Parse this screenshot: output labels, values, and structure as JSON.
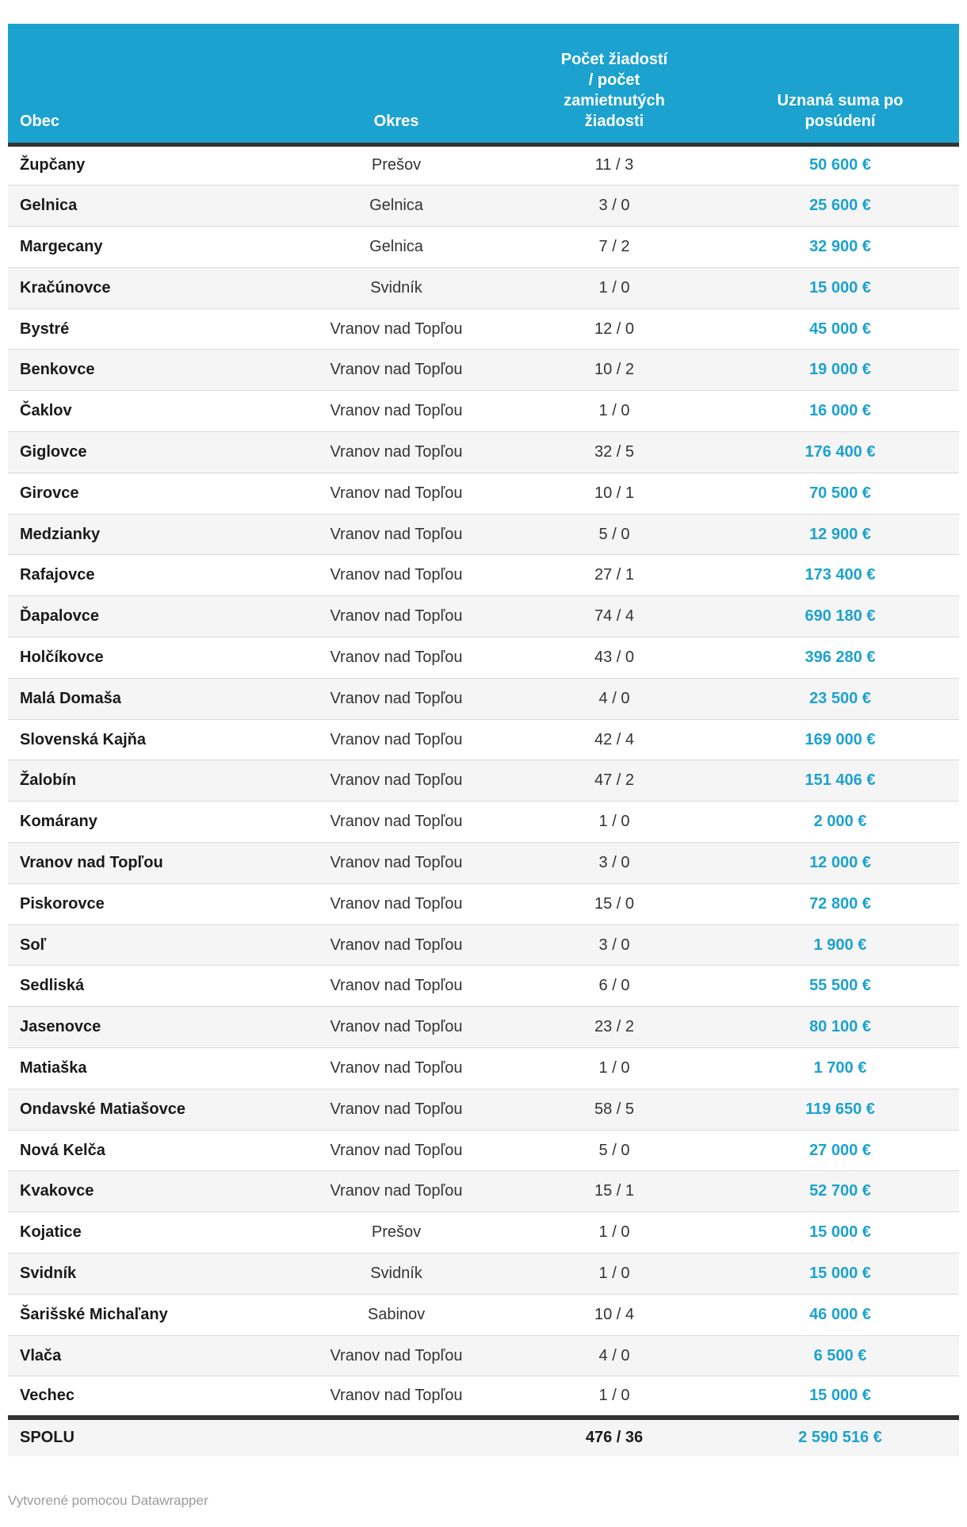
{
  "chart_data": {
    "type": "table",
    "columns": [
      {
        "key": "obec",
        "label": "Obec",
        "align": "left"
      },
      {
        "key": "okres",
        "label": "Okres",
        "align": "center"
      },
      {
        "key": "pocet",
        "label": "Počet žiadostí\n/ počet\nzamietnutých\nžiadosti",
        "align": "center"
      },
      {
        "key": "suma",
        "label": "Uznaná suma po\nposúdení",
        "align": "center"
      }
    ],
    "rows": [
      {
        "obec": "Župčany",
        "okres": "Prešov",
        "pocet": "11 / 3",
        "suma": "50 600 €"
      },
      {
        "obec": "Gelnica",
        "okres": "Gelnica",
        "pocet": "3 / 0",
        "suma": "25 600 €"
      },
      {
        "obec": "Margecany",
        "okres": "Gelnica",
        "pocet": "7 / 2",
        "suma": "32 900 €"
      },
      {
        "obec": "Kračúnovce",
        "okres": "Svidník",
        "pocet": "1 / 0",
        "suma": "15 000 €"
      },
      {
        "obec": "Bystré",
        "okres": "Vranov nad Topľou",
        "pocet": "12 / 0",
        "suma": "45 000 €"
      },
      {
        "obec": "Benkovce",
        "okres": "Vranov nad Topľou",
        "pocet": "10 / 2",
        "suma": "19 000 €"
      },
      {
        "obec": "Čaklov",
        "okres": "Vranov nad Topľou",
        "pocet": "1 / 0",
        "suma": "16 000 €"
      },
      {
        "obec": "Giglovce",
        "okres": "Vranov nad Topľou",
        "pocet": "32 / 5",
        "suma": "176 400 €"
      },
      {
        "obec": "Girovce",
        "okres": "Vranov nad Topľou",
        "pocet": "10 / 1",
        "suma": "70 500 €"
      },
      {
        "obec": "Medzianky",
        "okres": "Vranov nad Topľou",
        "pocet": "5 / 0",
        "suma": "12 900 €"
      },
      {
        "obec": "Rafajovce",
        "okres": "Vranov nad Topľou",
        "pocet": "27 / 1",
        "suma": "173 400 €"
      },
      {
        "obec": "Ďapalovce",
        "okres": "Vranov nad Topľou",
        "pocet": "74 / 4",
        "suma": "690 180 €"
      },
      {
        "obec": "Holčíkovce",
        "okres": "Vranov nad Topľou",
        "pocet": "43 / 0",
        "suma": "396 280 €"
      },
      {
        "obec": "Malá Domaša",
        "okres": "Vranov nad Topľou",
        "pocet": "4 / 0",
        "suma": "23 500 €"
      },
      {
        "obec": "Slovenská Kajňa",
        "okres": "Vranov nad Topľou",
        "pocet": "42 / 4",
        "suma": "169 000 €"
      },
      {
        "obec": "Žalobín",
        "okres": "Vranov nad Topľou",
        "pocet": "47 / 2",
        "suma": "151 406 €"
      },
      {
        "obec": "Komárany",
        "okres": "Vranov nad Topľou",
        "pocet": "1 / 0",
        "suma": "2 000 €"
      },
      {
        "obec": "Vranov nad Topľou",
        "okres": "Vranov nad Topľou",
        "pocet": "3 / 0",
        "suma": "12 000 €"
      },
      {
        "obec": "Piskorovce",
        "okres": "Vranov nad Topľou",
        "pocet": "15 / 0",
        "suma": "72 800 €"
      },
      {
        "obec": "Soľ",
        "okres": "Vranov nad Topľou",
        "pocet": "3 / 0",
        "suma": "1 900 €"
      },
      {
        "obec": "Sedliská",
        "okres": "Vranov nad Topľou",
        "pocet": "6 / 0",
        "suma": "55 500 €"
      },
      {
        "obec": "Jasenovce",
        "okres": "Vranov nad Topľou",
        "pocet": "23 / 2",
        "suma": "80 100 €"
      },
      {
        "obec": "Matiaška",
        "okres": "Vranov nad Topľou",
        "pocet": "1 / 0",
        "suma": "1 700 €"
      },
      {
        "obec": "Ondavské Matiašovce",
        "okres": "Vranov nad Topľou",
        "pocet": "58 / 5",
        "suma": "119 650 €"
      },
      {
        "obec": "Nová Kelča",
        "okres": "Vranov nad Topľou",
        "pocet": "5 / 0",
        "suma": "27 000 €"
      },
      {
        "obec": "Kvakovce",
        "okres": "Vranov nad Topľou",
        "pocet": "15 / 1",
        "suma": "52 700 €"
      },
      {
        "obec": "Kojatice",
        "okres": "Prešov",
        "pocet": "1 / 0",
        "suma": "15 000 €"
      },
      {
        "obec": "Svidník",
        "okres": "Svidník",
        "pocet": "1 / 0",
        "suma": "15 000 €"
      },
      {
        "obec": "Šarišské Michaľany",
        "okres": "Sabinov",
        "pocet": "10 / 4",
        "suma": "46 000 €"
      },
      {
        "obec": "Vlača",
        "okres": "Vranov nad Topľou",
        "pocet": "4 / 0",
        "suma": "6 500 €"
      },
      {
        "obec": "Vechec",
        "okres": "Vranov nad Topľou",
        "pocet": "1 / 0",
        "suma": "15 000 €"
      }
    ],
    "footer": {
      "obec": "SPOLU",
      "okres": "",
      "pocet": "476 / 36",
      "suma": "2 590 516 €"
    },
    "layout_hints": {
      "stripe_rows": true,
      "header_align": "bottom",
      "totals_row": true
    }
  },
  "attribution": "Vytvorené pomocou Datawrapper",
  "colors": {
    "header_bg": "#1CA2CE",
    "value_text": "#1CA2CE",
    "dark_border": "#333333",
    "stripe": "#f5f5f5",
    "row_line": "#dadada",
    "name_text": "#1a1a1a",
    "body_text": "#333333",
    "attribution_text": "#9b9b9b"
  }
}
